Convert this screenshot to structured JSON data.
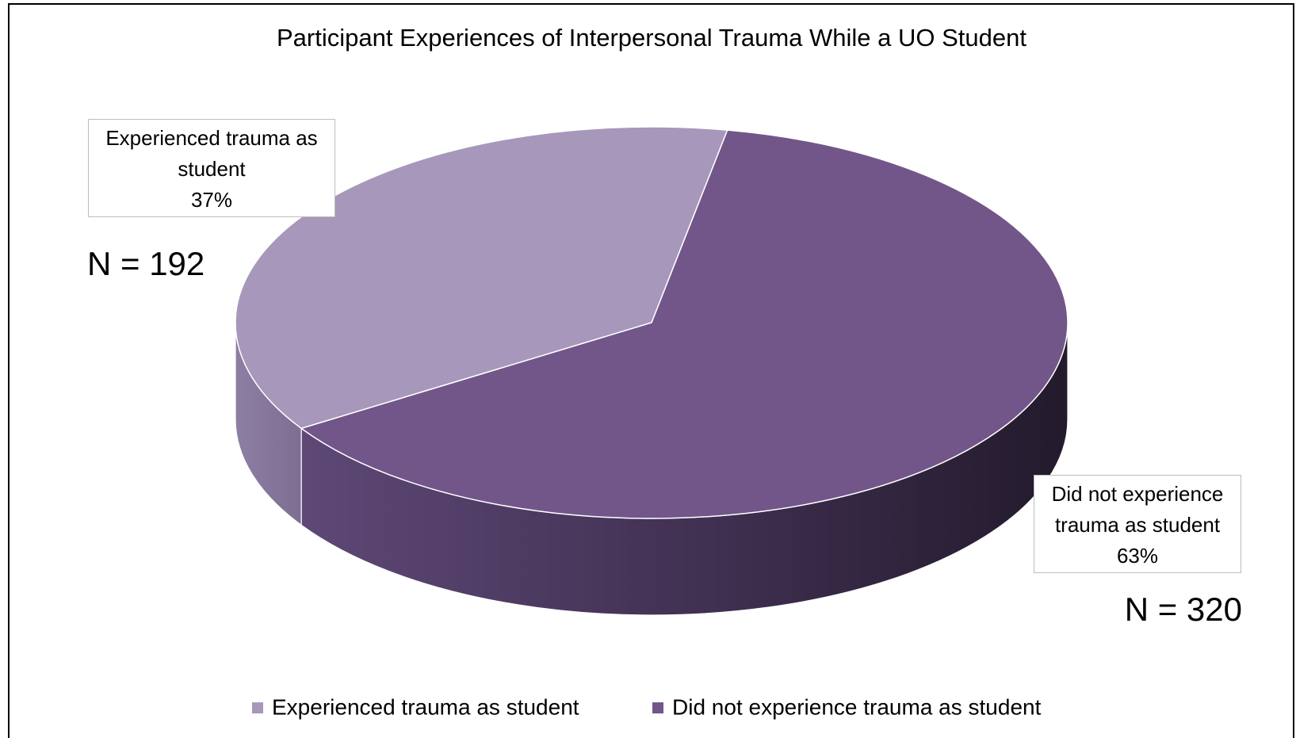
{
  "chart_data": {
    "type": "pie",
    "title": "Participant Experiences of Interpersonal Trauma While a UO Student",
    "categories": [
      "Experienced trauma as student",
      "Did not experience trauma as student"
    ],
    "values": [
      37,
      63
    ],
    "value_labels": [
      "37%",
      "63%"
    ],
    "colors": [
      "#a797bb",
      "#725689"
    ],
    "annotations": [
      "N = 192",
      "N = 320"
    ],
    "legend": "bottom"
  }
}
